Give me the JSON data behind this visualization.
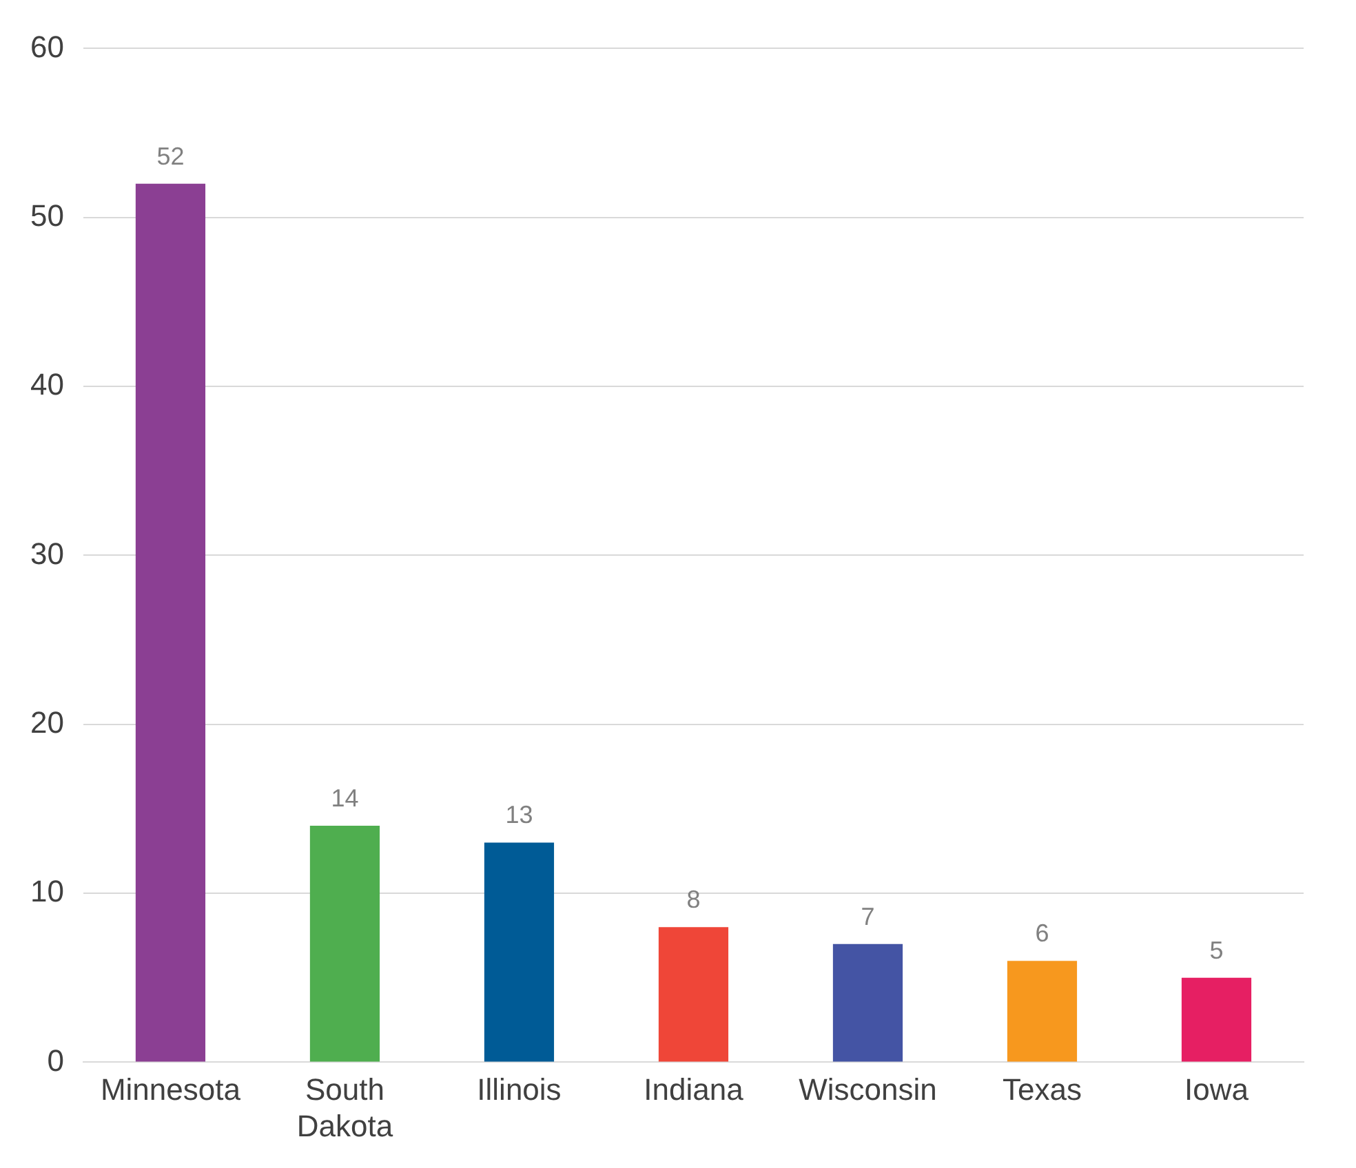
{
  "chart_data": {
    "type": "bar",
    "categories": [
      "Minnesota",
      "South Dakota",
      "Illinois",
      "Indiana",
      "Wisconsin",
      "Texas",
      "Iowa"
    ],
    "values": [
      52,
      14,
      13,
      8,
      7,
      6,
      5
    ],
    "data_labels": true,
    "colors": [
      "#8b3f93",
      "#4fae4f",
      "#005b96",
      "#ef4638",
      "#4454a4",
      "#f7981e",
      "#e61f63"
    ],
    "ylim": [
      0,
      60
    ],
    "yticks": [
      0,
      10,
      20,
      30,
      40,
      50,
      60
    ],
    "grid": "y"
  }
}
